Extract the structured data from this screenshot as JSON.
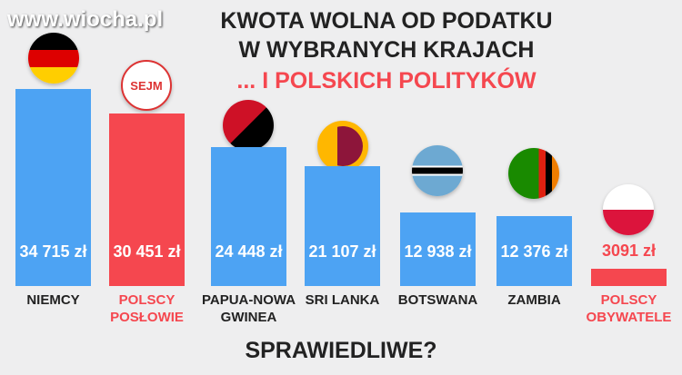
{
  "chart_data": {
    "type": "bar",
    "watermark": "www.wiocha.pl",
    "title_lines": [
      "KWOTA WOLNA OD PODATKU",
      "W WYBRANYCH KRAJACH"
    ],
    "subtitle": "... I POLSKICH POLITYKÓW",
    "footer": "SPRAWIEDLIWE?",
    "sejm_logo": "SEJM",
    "categories": [
      "NIEMCY",
      "POLSCY POSŁOWIE",
      "PAPUA-NOWA GWINEA",
      "SRI LANKA",
      "BOTSWANA",
      "ZAMBIA",
      "POLSCY OBYWATELE"
    ],
    "values": [
      34715,
      30451,
      24448,
      21107,
      12938,
      12376,
      3091
    ],
    "value_labels": [
      "34 715 zł",
      "30 451 zł",
      "24 448 zł",
      "21 107 zł",
      "12 938 zł",
      "12 376 zł",
      "3091 zł"
    ],
    "colors": [
      "#4da3f3",
      "#f5474f",
      "#4da3f3",
      "#4da3f3",
      "#4da3f3",
      "#4da3f3",
      "#f5474f"
    ],
    "ylim": [
      0,
      36000
    ]
  }
}
